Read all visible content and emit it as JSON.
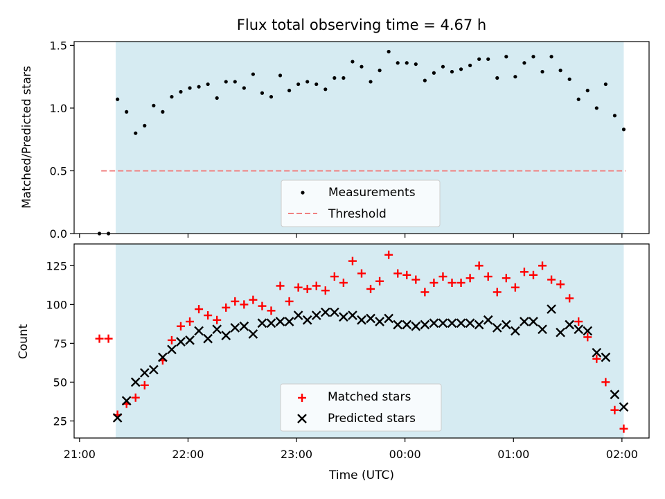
{
  "chart_data": [
    {
      "type": "scatter",
      "title": "Flux total observing time = 4.67 h",
      "xlabel": "",
      "ylabel": "Matched/Predicted stars",
      "ylim": [
        0,
        1.53
      ],
      "yticks": [
        0,
        0.5,
        1.0,
        1.5
      ],
      "ytick_labels": [
        "0.0",
        "0.5",
        "1.0",
        "1.5"
      ],
      "shaded_span_x": [
        "21:20",
        "02:01"
      ],
      "shade_color": "#add8e6",
      "legend": {
        "placement": "lower-center",
        "entries": [
          "Measurements",
          "Threshold"
        ]
      },
      "threshold": {
        "name": "Threshold",
        "y": 0.5,
        "x_range": [
          "21:12",
          "02:02"
        ],
        "color": "#f08080",
        "style": "dashed"
      },
      "series": [
        {
          "name": "Measurements",
          "color": "#000000",
          "marker": "dot",
          "x": [
            "21:11",
            "21:16",
            "21:21",
            "21:26",
            "21:31",
            "21:36",
            "21:41",
            "21:46",
            "21:51",
            "21:56",
            "22:01",
            "22:06",
            "22:11",
            "22:16",
            "22:21",
            "22:26",
            "22:31",
            "22:36",
            "22:41",
            "22:46",
            "22:51",
            "22:56",
            "23:01",
            "23:06",
            "23:11",
            "23:16",
            "23:21",
            "23:26",
            "23:31",
            "23:36",
            "23:41",
            "23:46",
            "23:51",
            "23:56",
            "00:01",
            "00:06",
            "00:11",
            "00:16",
            "00:21",
            "00:26",
            "00:31",
            "00:36",
            "00:41",
            "00:46",
            "00:51",
            "00:56",
            "01:01",
            "01:06",
            "01:11",
            "01:16",
            "01:21",
            "01:26",
            "01:31",
            "01:36",
            "01:41",
            "01:46",
            "01:51",
            "01:56",
            "02:01"
          ],
          "y": [
            0.0,
            0.0,
            1.07,
            0.97,
            0.8,
            0.86,
            1.02,
            0.97,
            1.09,
            1.13,
            1.16,
            1.17,
            1.19,
            1.08,
            1.21,
            1.21,
            1.16,
            1.27,
            1.12,
            1.09,
            1.26,
            1.14,
            1.19,
            1.21,
            1.19,
            1.15,
            1.24,
            1.24,
            1.37,
            1.33,
            1.21,
            1.3,
            1.45,
            1.36,
            1.36,
            1.35,
            1.22,
            1.28,
            1.33,
            1.29,
            1.31,
            1.34,
            1.39,
            1.39,
            1.24,
            1.41,
            1.25,
            1.36,
            1.41,
            1.29,
            1.41,
            1.3,
            1.23,
            1.07,
            1.14,
            1.0,
            1.19,
            0.94,
            0.83
          ]
        }
      ]
    },
    {
      "type": "scatter",
      "title": "",
      "xlabel": "Time (UTC)",
      "ylabel": "Count",
      "ylim": [
        14,
        139
      ],
      "yticks": [
        25,
        50,
        75,
        100,
        125
      ],
      "ytick_labels": [
        "25",
        "50",
        "75",
        "100",
        "125"
      ],
      "xlim": [
        "20:57",
        "02:15"
      ],
      "xticks": [
        "21:00",
        "22:00",
        "23:00",
        "00:00",
        "01:00",
        "02:00"
      ],
      "shaded_span_x": [
        "21:20",
        "02:01"
      ],
      "shade_color": "#add8e6",
      "legend": {
        "placement": "lower-center",
        "entries": [
          "Matched stars",
          "Predicted stars"
        ]
      },
      "series": [
        {
          "name": "Matched stars",
          "color": "#ff0000",
          "marker": "plus",
          "x": [
            "21:11",
            "21:16",
            "21:21",
            "21:26",
            "21:31",
            "21:36",
            "21:46",
            "21:51",
            "21:56",
            "22:01",
            "22:06",
            "22:11",
            "22:16",
            "22:21",
            "22:26",
            "22:31",
            "22:36",
            "22:41",
            "22:46",
            "22:51",
            "22:56",
            "23:01",
            "23:06",
            "23:11",
            "23:16",
            "23:21",
            "23:26",
            "23:31",
            "23:36",
            "23:41",
            "23:46",
            "23:51",
            "23:56",
            "00:01",
            "00:06",
            "00:11",
            "00:16",
            "00:21",
            "00:26",
            "00:31",
            "00:36",
            "00:41",
            "00:46",
            "00:51",
            "00:56",
            "01:01",
            "01:06",
            "01:11",
            "01:16",
            "01:21",
            "01:26",
            "01:31",
            "01:36",
            "01:41",
            "01:46",
            "01:51",
            "01:56",
            "02:01"
          ],
          "y": [
            78,
            78,
            29,
            36,
            40,
            48,
            64,
            77,
            86,
            89,
            97,
            93,
            90,
            98,
            102,
            100,
            103,
            99,
            96,
            112,
            102,
            111,
            110,
            112,
            109,
            118,
            114,
            128,
            120,
            110,
            115,
            132,
            120,
            119,
            116,
            108,
            114,
            118,
            114,
            114,
            117,
            125,
            118,
            108,
            117,
            111,
            121,
            119,
            125,
            116,
            113,
            104,
            89,
            79,
            65,
            50,
            32,
            20
          ]
        },
        {
          "name": "Predicted stars",
          "color": "#000000",
          "marker": "x",
          "x": [
            "21:21",
            "21:26",
            "21:31",
            "21:36",
            "21:41",
            "21:46",
            "21:51",
            "21:56",
            "22:01",
            "22:06",
            "22:11",
            "22:16",
            "22:21",
            "22:26",
            "22:31",
            "22:36",
            "22:41",
            "22:46",
            "22:51",
            "22:56",
            "23:01",
            "23:06",
            "23:11",
            "23:16",
            "23:21",
            "23:26",
            "23:31",
            "23:36",
            "23:41",
            "23:46",
            "23:51",
            "23:56",
            "00:01",
            "00:06",
            "00:11",
            "00:16",
            "00:21",
            "00:26",
            "00:31",
            "00:36",
            "00:41",
            "00:46",
            "00:51",
            "00:56",
            "01:01",
            "01:06",
            "01:11",
            "01:16",
            "01:21",
            "01:26",
            "01:31",
            "01:36",
            "01:41",
            "01:46",
            "01:51",
            "01:56",
            "02:01"
          ],
          "y": [
            27,
            38,
            50,
            56,
            58,
            66,
            71,
            76,
            77,
            83,
            78,
            84,
            80,
            85,
            86,
            81,
            88,
            88,
            89,
            89,
            93,
            90,
            93,
            95,
            95,
            92,
            93,
            90,
            91,
            89,
            91,
            87,
            87,
            86,
            87,
            88,
            88,
            88,
            88,
            88,
            87,
            90,
            85,
            87,
            83,
            89,
            89,
            84,
            97,
            82,
            87,
            84,
            83,
            69,
            66,
            42,
            34
          ]
        }
      ]
    }
  ]
}
